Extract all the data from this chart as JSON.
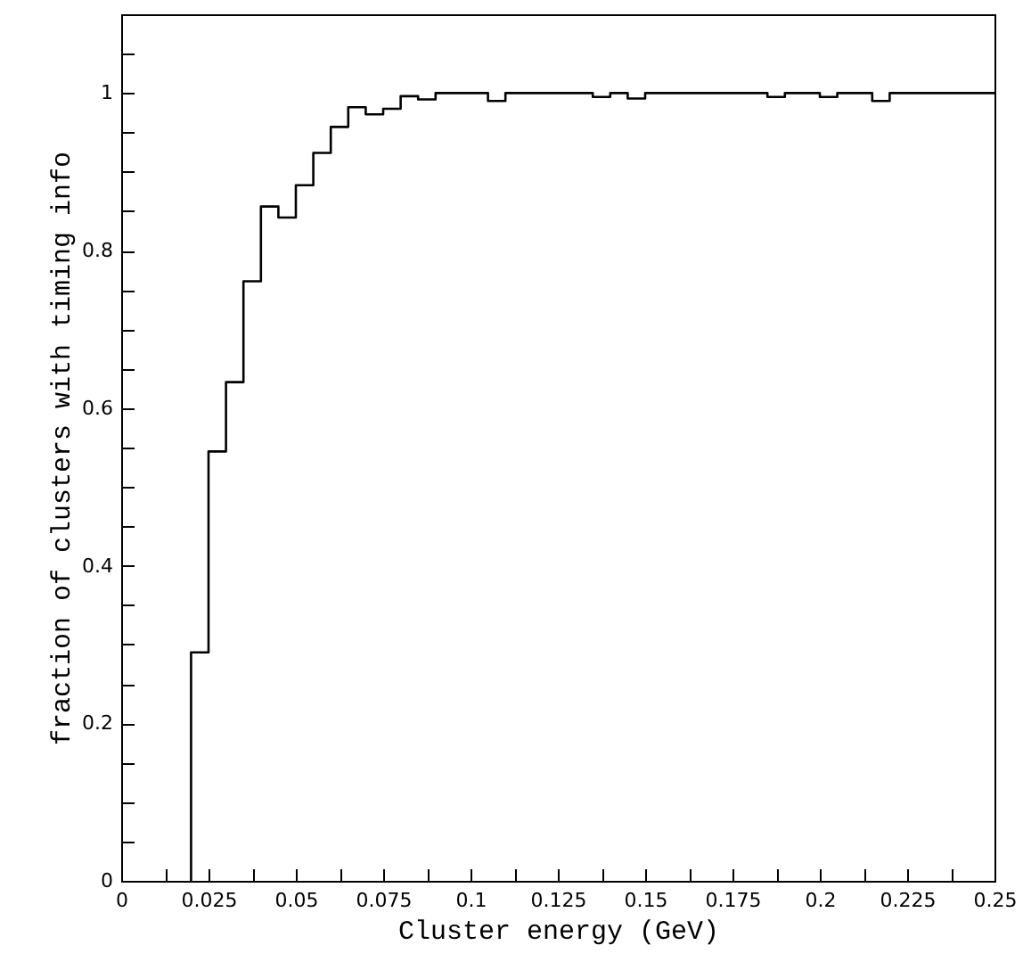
{
  "chart_data": {
    "type": "histogram",
    "xlabel": "Cluster energy (GeV)",
    "ylabel": "fraction of clusters with timing info",
    "bins": [
      0.02,
      0.025,
      0.03,
      0.035,
      0.04,
      0.045,
      0.05,
      0.055,
      0.06,
      0.065,
      0.07,
      0.075,
      0.08,
      0.085,
      0.09,
      0.095,
      0.1,
      0.105,
      0.11,
      0.115,
      0.12,
      0.125,
      0.13,
      0.135,
      0.14,
      0.145,
      0.15,
      0.155,
      0.16,
      0.165,
      0.17,
      0.175,
      0.18,
      0.185,
      0.19,
      0.195,
      0.2,
      0.205,
      0.21,
      0.215,
      0.22,
      0.225,
      0.23,
      0.235,
      0.24,
      0.245,
      0.25
    ],
    "values": [
      0.29,
      0.545,
      0.633,
      0.761,
      0.856,
      0.842,
      0.883,
      0.924,
      0.957,
      0.982,
      0.973,
      0.98,
      0.996,
      0.992,
      1,
      1,
      1,
      0.99,
      1,
      1,
      1,
      1,
      1,
      0.995,
      1,
      0.993,
      1,
      1,
      1,
      1,
      1,
      1,
      1,
      0.995,
      1,
      1,
      0.995,
      1,
      1,
      0.99,
      1,
      1,
      1,
      1,
      1,
      1
    ],
    "color": "#000000",
    "xlim": [
      0,
      0.25
    ],
    "xticks": [
      0,
      {
        "value": 0.0125,
        "label": null
      },
      0.025,
      {
        "value": 0.0375,
        "label": null
      },
      0.05,
      {
        "value": 0.0625,
        "label": null
      },
      0.075,
      {
        "value": 0.0875,
        "label": null
      },
      0.1,
      {
        "value": 0.1125,
        "label": null
      },
      0.125,
      {
        "value": 0.1375,
        "label": null
      },
      0.15,
      {
        "value": 0.1625,
        "label": null
      },
      0.175,
      {
        "value": 0.1875,
        "label": null
      },
      0.2,
      {
        "value": 0.2125,
        "label": null
      },
      0.225,
      {
        "value": 0.2375,
        "label": null
      },
      0.25
    ],
    "ylim": [
      0,
      1.1
    ],
    "yticks": [
      0,
      {
        "value": 0.05,
        "label": null
      },
      {
        "value": 0.1,
        "label": null
      },
      {
        "value": 0.15,
        "label": null
      },
      0.2,
      {
        "value": 0.25,
        "label": null
      },
      {
        "value": 0.3,
        "label": null
      },
      {
        "value": 0.35,
        "label": null
      },
      0.4,
      {
        "value": 0.45,
        "label": null
      },
      {
        "value": 0.5,
        "label": null
      },
      {
        "value": 0.55,
        "label": null
      },
      0.6,
      {
        "value": 0.65,
        "label": null
      },
      {
        "value": 0.7,
        "label": null
      },
      {
        "value": 0.75,
        "label": null
      },
      0.8,
      {
        "value": 0.85,
        "label": null
      },
      {
        "value": 0.9,
        "label": null
      },
      {
        "value": 0.95,
        "label": null
      },
      1,
      {
        "value": 1.05,
        "label": null
      }
    ],
    "grid": false
  }
}
